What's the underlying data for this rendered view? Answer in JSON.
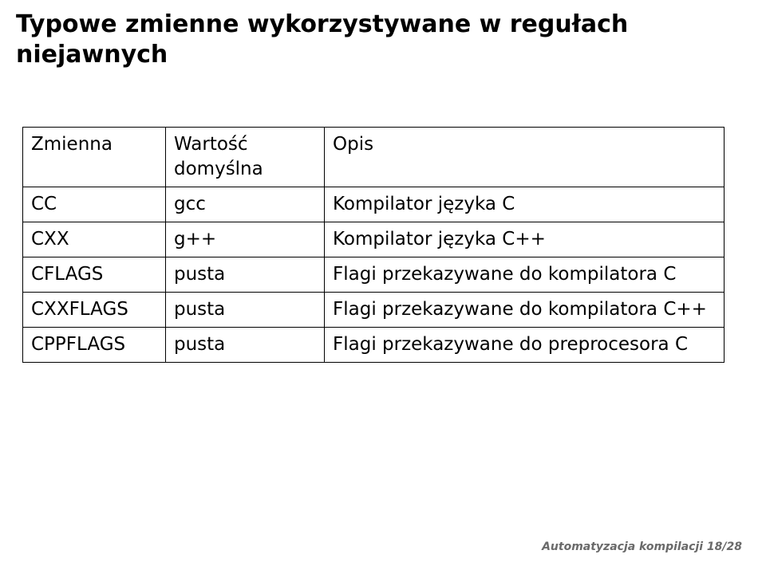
{
  "title_line1": "Typowe zmienne wykorzystywane w regułach",
  "title_line2": "niejawnych",
  "table": {
    "header": {
      "c0": "Zmienna",
      "c1": "Wartość domyślna",
      "c2": "Opis"
    },
    "rows": [
      {
        "c0": "CC",
        "c1": "gcc",
        "c2": "Kompilator języka C"
      },
      {
        "c0": "CXX",
        "c1": "g++",
        "c2": "Kompilator języka C++"
      },
      {
        "c0": "CFLAGS",
        "c1": "pusta",
        "c2": "Flagi przekazywane do kompilatora C"
      },
      {
        "c0": "CXXFLAGS",
        "c1": "pusta",
        "c2": "Flagi przekazywane do kompilatora C++"
      },
      {
        "c0": "CPPFLAGS",
        "c1": "pusta",
        "c2": "Flagi przekazywane do preprocesora C"
      }
    ]
  },
  "footer": "Automatyzacja kompilacji   18/28"
}
